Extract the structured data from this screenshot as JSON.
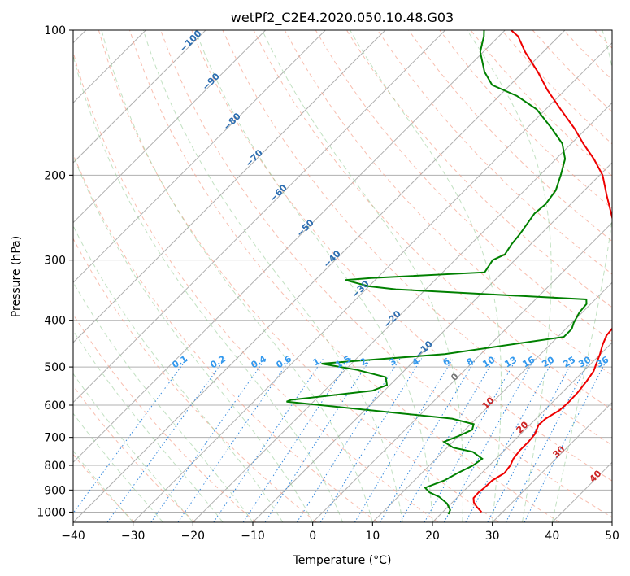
{
  "chart_data": {
    "type": "line",
    "title": "wetPf2_C2E4.2020.050.10.48.G03",
    "xlabel": "Temperature (°C)",
    "ylabel": "Pressure (hPa)",
    "xlim": [
      -40,
      50
    ],
    "ylim": [
      1050,
      100
    ],
    "y_scale": "log",
    "x_ticks": [
      "−40",
      "−30",
      "−20",
      "−10",
      "0",
      "10",
      "20",
      "30",
      "40",
      "50"
    ],
    "x_tick_values": [
      -40,
      -30,
      -20,
      -10,
      0,
      10,
      20,
      30,
      40,
      50
    ],
    "y_ticks": [
      "100",
      "200",
      "300",
      "400",
      "500",
      "600",
      "700",
      "800",
      "900",
      "1000"
    ],
    "y_tick_values": [
      100,
      200,
      300,
      400,
      500,
      600,
      700,
      800,
      900,
      1000
    ],
    "skew": 45,
    "series": [
      {
        "name": "temperature",
        "color": "#ee0000",
        "points": [
          [
            26.5,
            1000
          ],
          [
            24.8,
            975
          ],
          [
            23.6,
            955
          ],
          [
            22.8,
            935
          ],
          [
            22.7,
            910
          ],
          [
            22.9,
            890
          ],
          [
            23.0,
            860
          ],
          [
            23.8,
            830
          ],
          [
            23.5,
            800
          ],
          [
            22.9,
            775
          ],
          [
            22.6,
            745
          ],
          [
            22.6,
            715
          ],
          [
            22.4,
            690
          ],
          [
            21.5,
            660
          ],
          [
            21.6,
            640
          ],
          [
            22.5,
            615
          ],
          [
            22.7,
            590
          ],
          [
            22.6,
            565
          ],
          [
            22.2,
            535
          ],
          [
            21.7,
            510
          ],
          [
            20.8,
            490
          ],
          [
            19.9,
            470
          ],
          [
            18.8,
            450
          ],
          [
            17.9,
            430
          ],
          [
            17.6,
            410
          ],
          [
            17.6,
            395
          ],
          [
            16.7,
            385
          ],
          [
            14.5,
            370
          ],
          [
            12.8,
            358
          ],
          [
            11.6,
            345
          ],
          [
            11.4,
            338
          ],
          [
            10.0,
            320
          ],
          [
            7.9,
            300
          ],
          [
            4.2,
            275
          ],
          [
            -0.8,
            245
          ],
          [
            -5.5,
            220
          ],
          [
            -9.5,
            200
          ],
          [
            -13.7,
            185
          ],
          [
            -18.0,
            172
          ],
          [
            -22.0,
            160
          ],
          [
            -27.5,
            146
          ],
          [
            -33.0,
            133
          ],
          [
            -37.6,
            122
          ],
          [
            -43.0,
            111
          ],
          [
            -46.8,
            103
          ],
          [
            -49.0,
            100
          ]
        ]
      },
      {
        "name": "dewpoint",
        "color": "#008000",
        "points": [
          [
            21.3,
            1010
          ],
          [
            20.9,
            990
          ],
          [
            19.3,
            960
          ],
          [
            16.9,
            930
          ],
          [
            14.5,
            910
          ],
          [
            13.0,
            890
          ],
          [
            15.0,
            860
          ],
          [
            16.0,
            830
          ],
          [
            17.3,
            800
          ],
          [
            17.7,
            775
          ],
          [
            15.0,
            750
          ],
          [
            11.0,
            735
          ],
          [
            8.5,
            715
          ],
          [
            10.0,
            695
          ],
          [
            11.2,
            675
          ],
          [
            10.5,
            657
          ],
          [
            6.0,
            640
          ],
          [
            -24.5,
            590
          ],
          [
            -24.0,
            585
          ],
          [
            -12.0,
            560
          ],
          [
            -10.5,
            545
          ],
          [
            -12.0,
            525
          ],
          [
            -18.0,
            507
          ],
          [
            -25.0,
            492
          ],
          [
            -19.0,
            485
          ],
          [
            -6.0,
            470
          ],
          [
            11.0,
            433
          ],
          [
            11.0,
            425
          ],
          [
            11.0,
            417
          ],
          [
            10.3,
            405
          ],
          [
            9.5,
            385
          ],
          [
            9.3,
            370
          ],
          [
            8.5,
            362
          ],
          [
            -25.0,
            345
          ],
          [
            -30.0,
            340
          ],
          [
            -35.0,
            330
          ],
          [
            -31.0,
            327
          ],
          [
            -13.0,
            318
          ],
          [
            -13.7,
            300
          ],
          [
            -12.6,
            292
          ],
          [
            -13.2,
            278
          ],
          [
            -13.5,
            265
          ],
          [
            -14.0,
            252
          ],
          [
            -14.5,
            240
          ],
          [
            -14.2,
            230
          ],
          [
            -14.8,
            215
          ],
          [
            -16.5,
            200
          ],
          [
            -18.5,
            185
          ],
          [
            -21.5,
            172
          ],
          [
            -25.8,
            160
          ],
          [
            -31.5,
            146
          ],
          [
            -37.0,
            137
          ],
          [
            -43.0,
            130
          ],
          [
            -46.5,
            122
          ],
          [
            -50.5,
            111
          ],
          [
            -51.5,
            107
          ],
          [
            -52.5,
            103
          ],
          [
            -53.5,
            100
          ]
        ]
      }
    ],
    "reference_lines": {
      "isotherms_gray": "solid gray, every 10 °C, skewed 45°",
      "isobars_gray": "solid gray at each y tick",
      "dry_adiabats": "dashed salmon",
      "moist_adiabats": "dashed light green",
      "mixing_ratio": "dotted blue"
    },
    "annotations": {
      "dry_adiabat_labels": [
        "−100",
        "−90",
        "−80",
        "−70",
        "−60",
        "−50",
        "−40",
        "−30",
        "−20",
        "−10"
      ],
      "zero_label": "0",
      "red_labels": [
        "10",
        "20",
        "30",
        "40"
      ],
      "mixing_ratio_labels": [
        "0.1",
        "0.2",
        "0.4",
        "0.6",
        "1",
        "1.5",
        "2",
        "3",
        "4",
        "6",
        "8",
        "10",
        "13",
        "16",
        "20",
        "25",
        "30",
        "36"
      ]
    }
  }
}
